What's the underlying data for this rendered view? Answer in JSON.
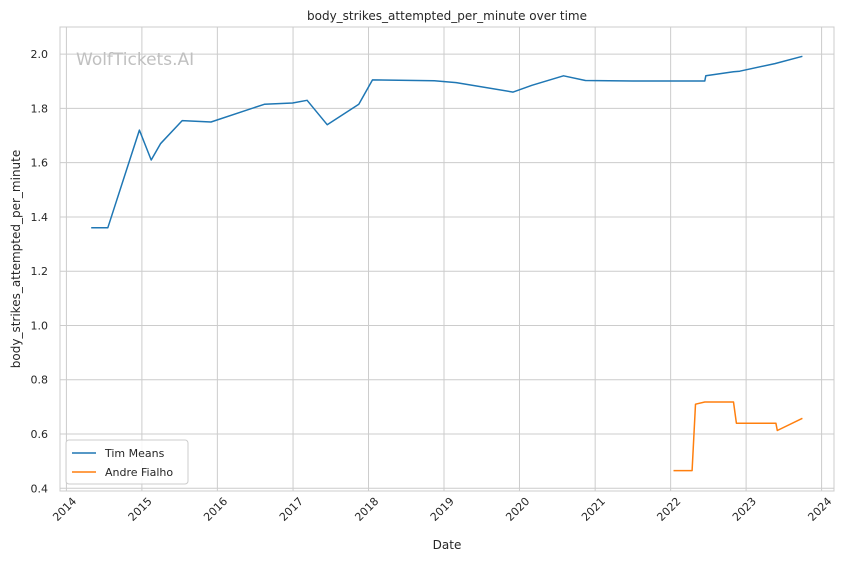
{
  "chart_data": {
    "type": "line",
    "title": "body_strikes_attempted_per_minute over time",
    "xlabel": "Date",
    "ylabel": "body_strikes_attempted_per_minute",
    "watermark": "WolfTickets.AI",
    "xlim": [
      "2013-12-01",
      "2024-03-01"
    ],
    "ylim": [
      0.39,
      2.1
    ],
    "x_ticks": [
      "2014",
      "2015",
      "2016",
      "2017",
      "2018",
      "2019",
      "2020",
      "2021",
      "2022",
      "2023",
      "2024"
    ],
    "y_ticks": [
      "0.4",
      "0.6",
      "0.8",
      "1.0",
      "1.2",
      "1.4",
      "1.6",
      "1.8",
      "2.0"
    ],
    "grid": true,
    "legend_position": "bottom-left",
    "series": [
      {
        "name": "Tim Means",
        "color": "#1f77b4",
        "points": [
          [
            "2014-05-01",
            1.36
          ],
          [
            "2014-07-20",
            1.36
          ],
          [
            "2014-12-20",
            1.72
          ],
          [
            "2015-02-15",
            1.61
          ],
          [
            "2015-04-01",
            1.67
          ],
          [
            "2015-07-15",
            1.755
          ],
          [
            "2015-12-01",
            1.75
          ],
          [
            "2016-08-15",
            1.815
          ],
          [
            "2016-12-30",
            1.82
          ],
          [
            "2017-03-10",
            1.83
          ],
          [
            "2017-06-15",
            1.74
          ],
          [
            "2017-11-15",
            1.815
          ],
          [
            "2018-01-20",
            1.905
          ],
          [
            "2018-11-15",
            1.902
          ],
          [
            "2019-03-01",
            1.895
          ],
          [
            "2019-12-01",
            1.86
          ],
          [
            "2020-03-01",
            1.885
          ],
          [
            "2020-08-01",
            1.92
          ],
          [
            "2020-11-15",
            1.903
          ],
          [
            "2021-07-01",
            1.901
          ],
          [
            "2022-06-15",
            1.901
          ],
          [
            "2022-06-20",
            1.92
          ],
          [
            "2022-11-01",
            1.935
          ],
          [
            "2022-12-01",
            1.937
          ],
          [
            "2023-05-20",
            1.965
          ],
          [
            "2023-09-30",
            1.992
          ]
        ]
      },
      {
        "name": "Andre Fialho",
        "color": "#ff7f0e",
        "points": [
          [
            "2022-01-15",
            0.465
          ],
          [
            "2022-04-15",
            0.465
          ],
          [
            "2022-05-01",
            0.71
          ],
          [
            "2022-06-15",
            0.718
          ],
          [
            "2022-11-01",
            0.718
          ],
          [
            "2022-11-15",
            0.64
          ],
          [
            "2023-05-25",
            0.64
          ],
          [
            "2023-06-01",
            0.613
          ],
          [
            "2023-09-30",
            0.658
          ]
        ]
      }
    ]
  }
}
